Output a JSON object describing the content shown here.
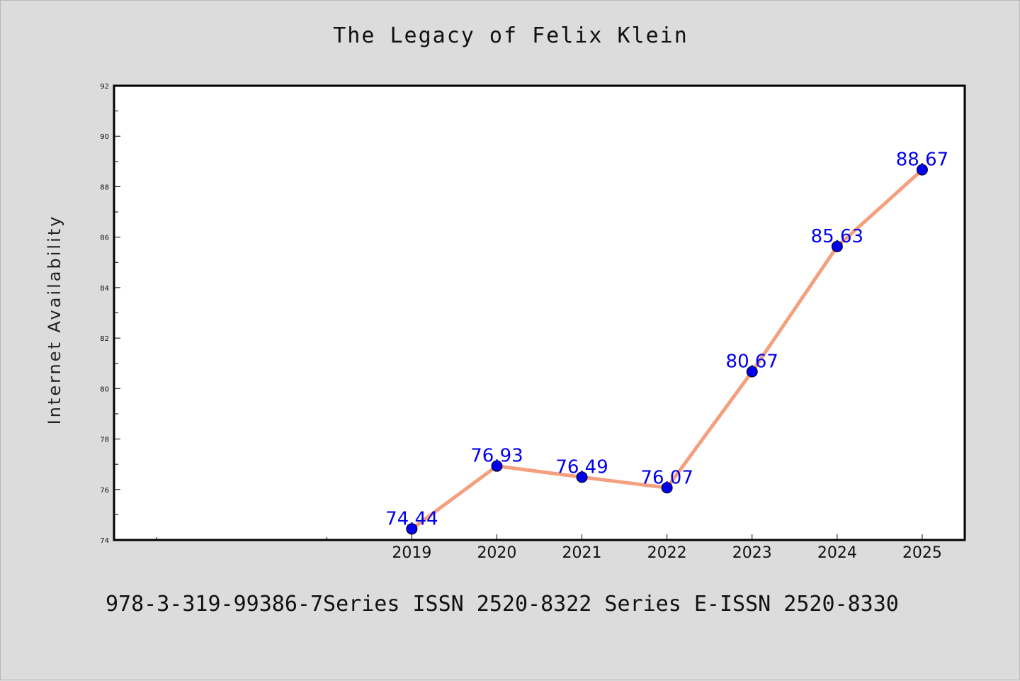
{
  "header": {
    "title": "The Legacy of Felix Klein"
  },
  "footer": {
    "text": "978-3-319-99386-7Series ISSN 2520-8322 Series E-ISSN 2520-8330"
  },
  "colors": {
    "line": "#f4a07f",
    "marker": "#0000ee",
    "label": "#0000ee",
    "background": "#dcdcdc",
    "plot_background": "#ffffff"
  },
  "chart_data": {
    "type": "line",
    "title": "The Legacy of Felix Klein",
    "xlabel": "",
    "ylabel": "Internet Availability",
    "x": [
      "2019",
      "2020",
      "2021",
      "2022",
      "2023",
      "2024",
      "2025"
    ],
    "x_numeric": [
      2019,
      2020,
      2021,
      2022,
      2023,
      2024,
      2025
    ],
    "xlim": [
      2015.5,
      2025.5
    ],
    "ylim": [
      74,
      92
    ],
    "y_ticks": [
      74,
      76,
      78,
      80,
      82,
      84,
      86,
      88,
      90,
      92
    ],
    "y_ticks_display": [
      "74",
      "76",
      "78",
      "80",
      "82",
      "84",
      "86",
      "88",
      "90",
      "92"
    ],
    "series": [
      {
        "values": [
          74.44,
          76.93,
          76.49,
          76.07,
          80.67,
          85.63,
          88.67
        ],
        "value_labels": [
          "74.44",
          "76.93",
          "76.49",
          "76.07",
          "80.67",
          "85.63",
          "88.67"
        ]
      }
    ],
    "grid": false,
    "legend": "none"
  }
}
